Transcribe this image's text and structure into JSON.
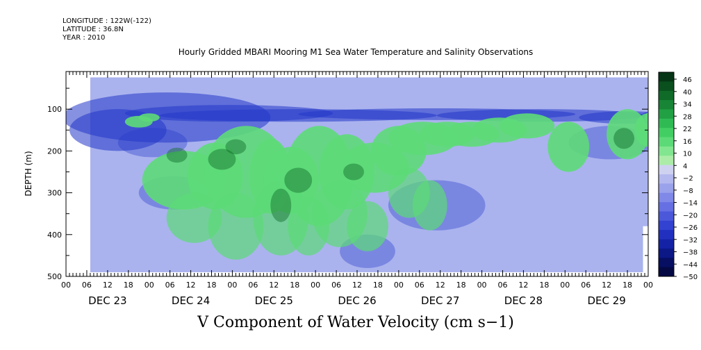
{
  "header": {
    "longitude": "LONGITUDE : 122W(-122)",
    "latitude": "LATITUDE : 36.8N",
    "year": "YEAR : 2010"
  },
  "chart_data": {
    "type": "heatmap",
    "title": "Hourly Gridded MBARI Mooring M1 Sea Water Temperature and Salinity Observations",
    "variable_title": "V Component of Water Velocity (cm s−1)",
    "ylabel": "DEPTH (m)",
    "y_ticks": [
      100,
      200,
      300,
      400,
      500
    ],
    "y_minor_ticks": [
      50,
      150,
      250,
      350,
      450
    ],
    "ylim": [
      500,
      10
    ],
    "x_start_hour": 0,
    "x_end_hour": 168,
    "x_tick_labels": [
      "00",
      "06",
      "12",
      "18",
      "00",
      "06",
      "12",
      "18",
      "00",
      "06",
      "12",
      "18",
      "00",
      "06",
      "12",
      "18",
      "00",
      "06",
      "12",
      "18",
      "00",
      "06",
      "12",
      "18",
      "00",
      "06",
      "12",
      "18",
      "00"
    ],
    "days": [
      "DEC 23",
      "DEC 24",
      "DEC 25",
      "DEC 26",
      "DEC 27",
      "DEC 28",
      "DEC 29"
    ],
    "data_start_hour": 7,
    "data_depth_range": [
      24,
      490
    ],
    "colorbar": {
      "labels": [
        "46",
        "40",
        "34",
        "28",
        "22",
        "16",
        "10",
        "4",
        "-2",
        "-8",
        "-14",
        "-20",
        "-26",
        "-32",
        "-38",
        "-44",
        "-50"
      ],
      "colors": [
        "#053515",
        "#0a4f1e",
        "#106a28",
        "#188435",
        "#22a044",
        "#2fba54",
        "#43ce64",
        "#5dda78",
        "#82e58f",
        "#aceca8",
        "#cfd1f0",
        "#b3b8ee",
        "#9aa2ec",
        "#8088e8",
        "#6670e2",
        "#4b58da",
        "#3342d0",
        "#2230bf",
        "#1422a6",
        "#0b1886",
        "#070f63",
        "#040944"
      ]
    },
    "description_colors": {
      "strong_positive": "#0f6a28",
      "weak_positive": "#5dda78",
      "weak_negative": "#aab3ee",
      "strong_negative": "#2236c8"
    }
  }
}
